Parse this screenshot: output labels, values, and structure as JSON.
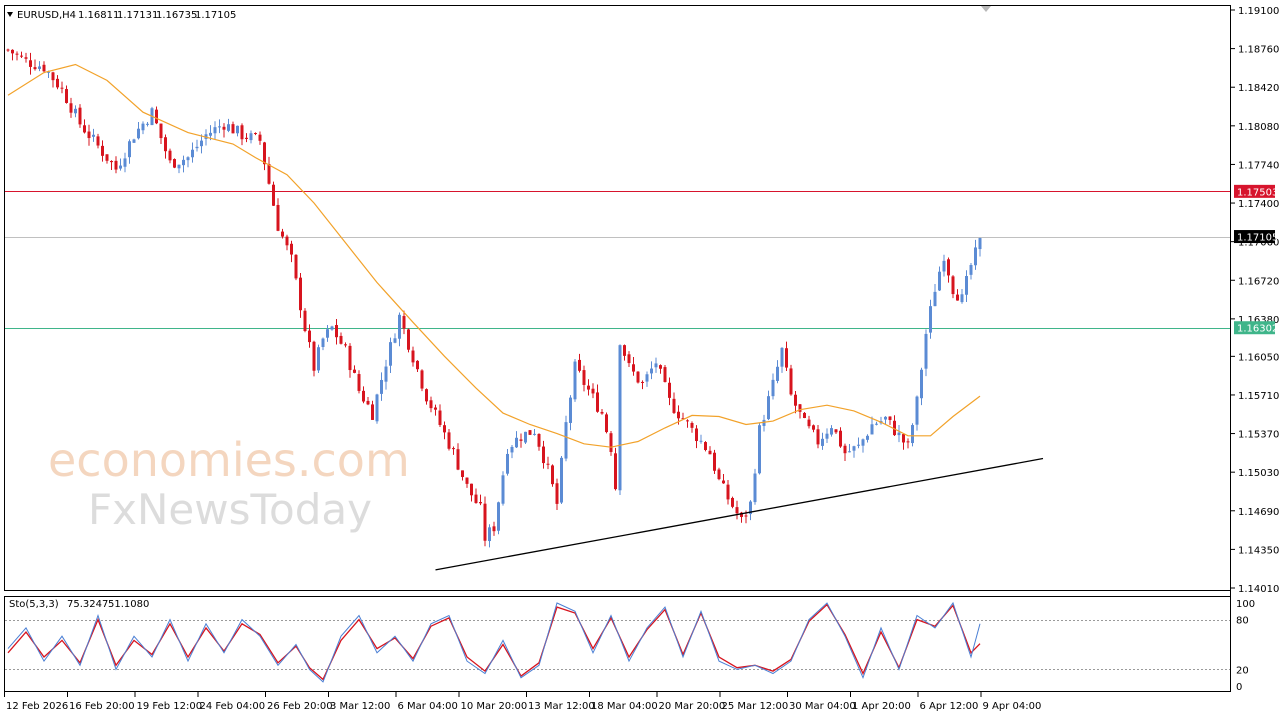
{
  "header": {
    "symbol": "EURUSD,H4",
    "open": "1.16811",
    "high": "1.17131",
    "low": "1.16735",
    "close": "1.17105"
  },
  "stoch_header": {
    "name": "Sto(5,3,3)",
    "main": "75.3247",
    "signal": "51.1080"
  },
  "watermark": {
    "line1": "economies.com",
    "line2": "FxNewsToday"
  },
  "colors": {
    "bull": "#5b8bd4",
    "bear": "#d7141e",
    "ma": "#f2a22a",
    "resistance": "#d7142d",
    "support": "#3fb58a",
    "current": "#000000",
    "trend": "#000000",
    "stoch_main": "#4a7fd4",
    "stoch_signal": "#d7141e"
  },
  "price_axis": {
    "ticks": [
      "1.19100",
      "1.18760",
      "1.18420",
      "1.18080",
      "1.17740",
      "1.17400",
      "1.17060",
      "1.16720",
      "1.16380",
      "1.16050",
      "1.15710",
      "1.15370",
      "1.15030",
      "1.14690",
      "1.14350",
      "1.14010"
    ],
    "resistance_tag": "1.17503",
    "current_tag": "1.17105",
    "support_tag": "1.16302"
  },
  "stoch_axis": {
    "ticks": [
      "100",
      "80",
      "20",
      "0"
    ]
  },
  "time_axis": {
    "ticks": [
      "12 Feb 2026",
      "16 Feb 20:00",
      "19 Feb 12:00",
      "24 Feb 04:00",
      "26 Feb 20:00",
      "3 Mar 12:00",
      "6 Mar 04:00",
      "10 Mar 20:00",
      "13 Mar 12:00",
      "18 Mar 04:00",
      "20 Mar 20:00",
      "25 Mar 12:00",
      "30 Mar 04:00",
      "1 Apr 20:00",
      "6 Apr 12:00",
      "9 Apr 04:00"
    ]
  },
  "chart_data": {
    "type": "candlestick",
    "symbol": "EURUSD",
    "timeframe": "H4",
    "ylim": [
      1.1401,
      1.191
    ],
    "horizontal_levels": [
      {
        "value": 1.17503,
        "role": "resistance"
      },
      {
        "value": 1.17105,
        "role": "current"
      },
      {
        "value": 1.16302,
        "role": "support"
      }
    ],
    "trendline": {
      "from": [
        95,
        1.1417
      ],
      "to": [
        230,
        1.1515
      ]
    },
    "close_anchors": [
      [
        0,
        1.1875
      ],
      [
        4,
        1.1865
      ],
      [
        8,
        1.186
      ],
      [
        12,
        1.184
      ],
      [
        16,
        1.181
      ],
      [
        20,
        1.179
      ],
      [
        24,
        1.177
      ],
      [
        28,
        1.18
      ],
      [
        32,
        1.182
      ],
      [
        36,
        1.1775
      ],
      [
        40,
        1.178
      ],
      [
        44,
        1.18
      ],
      [
        48,
        1.181
      ],
      [
        52,
        1.18
      ],
      [
        56,
        1.1795
      ],
      [
        60,
        1.172
      ],
      [
        63,
        1.169
      ],
      [
        66,
        1.163
      ],
      [
        68,
        1.1595
      ],
      [
        70,
        1.162
      ],
      [
        72,
        1.163
      ],
      [
        75,
        1.161
      ],
      [
        78,
        1.1575
      ],
      [
        81,
        1.1555
      ],
      [
        84,
        1.16
      ],
      [
        87,
        1.164
      ],
      [
        90,
        1.1605
      ],
      [
        93,
        1.157
      ],
      [
        96,
        1.1545
      ],
      [
        99,
        1.152
      ],
      [
        102,
        1.149
      ],
      [
        105,
        1.147
      ],
      [
        106,
        1.1445
      ],
      [
        108,
        1.1455
      ],
      [
        111,
        1.1525
      ],
      [
        114,
        1.1535
      ],
      [
        117,
        1.154
      ],
      [
        120,
        1.1505
      ],
      [
        122,
        1.1475
      ],
      [
        124,
        1.1545
      ],
      [
        126,
        1.1595
      ],
      [
        129,
        1.1575
      ],
      [
        132,
        1.1555
      ],
      [
        134,
        1.1525
      ],
      [
        135,
        1.149
      ],
      [
        136,
        1.162
      ],
      [
        138,
        1.1595
      ],
      [
        141,
        1.158
      ],
      [
        144,
        1.16
      ],
      [
        147,
        1.1565
      ],
      [
        150,
        1.155
      ],
      [
        153,
        1.1535
      ],
      [
        156,
        1.152
      ],
      [
        158,
        1.1495
      ],
      [
        160,
        1.148
      ],
      [
        163,
        1.146
      ],
      [
        165,
        1.1475
      ],
      [
        167,
        1.154
      ],
      [
        170,
        1.158
      ],
      [
        172,
        1.161
      ],
      [
        174,
        1.157
      ],
      [
        177,
        1.1545
      ],
      [
        180,
        1.153
      ],
      [
        183,
        1.1545
      ],
      [
        186,
        1.152
      ],
      [
        189,
        1.1525
      ],
      [
        192,
        1.1545
      ],
      [
        195,
        1.155
      ],
      [
        198,
        1.1535
      ],
      [
        200,
        1.1525
      ],
      [
        202,
        1.1565
      ],
      [
        204,
        1.1625
      ],
      [
        206,
        1.1665
      ],
      [
        208,
        1.1695
      ],
      [
        210,
        1.1665
      ],
      [
        212,
        1.1655
      ],
      [
        214,
        1.1685
      ],
      [
        216,
        1.1705
      ]
    ],
    "ma_anchors": [
      [
        0,
        1.1835
      ],
      [
        8,
        1.1855
      ],
      [
        15,
        1.1862
      ],
      [
        22,
        1.1848
      ],
      [
        30,
        1.182
      ],
      [
        40,
        1.1802
      ],
      [
        50,
        1.1792
      ],
      [
        55,
        1.178
      ],
      [
        62,
        1.1765
      ],
      [
        68,
        1.174
      ],
      [
        75,
        1.1705
      ],
      [
        82,
        1.167
      ],
      [
        90,
        1.1635
      ],
      [
        97,
        1.1605
      ],
      [
        104,
        1.1577
      ],
      [
        110,
        1.1555
      ],
      [
        116,
        1.1545
      ],
      [
        122,
        1.1537
      ],
      [
        128,
        1.1528
      ],
      [
        134,
        1.1525
      ],
      [
        140,
        1.153
      ],
      [
        146,
        1.1542
      ],
      [
        152,
        1.1553
      ],
      [
        158,
        1.1552
      ],
      [
        164,
        1.1545
      ],
      [
        170,
        1.1548
      ],
      [
        176,
        1.1558
      ],
      [
        182,
        1.1562
      ],
      [
        188,
        1.1557
      ],
      [
        194,
        1.1547
      ],
      [
        200,
        1.1535
      ],
      [
        205,
        1.1535
      ],
      [
        210,
        1.1552
      ],
      [
        216,
        1.157
      ]
    ],
    "stoch_main": [
      [
        0,
        45
      ],
      [
        4,
        70
      ],
      [
        8,
        30
      ],
      [
        12,
        60
      ],
      [
        16,
        25
      ],
      [
        20,
        85
      ],
      [
        24,
        20
      ],
      [
        28,
        60
      ],
      [
        32,
        35
      ],
      [
        36,
        80
      ],
      [
        40,
        30
      ],
      [
        44,
        75
      ],
      [
        48,
        40
      ],
      [
        52,
        80
      ],
      [
        56,
        60
      ],
      [
        60,
        25
      ],
      [
        64,
        50
      ],
      [
        67,
        20
      ],
      [
        70,
        5
      ],
      [
        74,
        60
      ],
      [
        78,
        85
      ],
      [
        82,
        40
      ],
      [
        86,
        60
      ],
      [
        90,
        30
      ],
      [
        94,
        75
      ],
      [
        98,
        85
      ],
      [
        102,
        30
      ],
      [
        106,
        15
      ],
      [
        110,
        55
      ],
      [
        114,
        10
      ],
      [
        118,
        25
      ],
      [
        122,
        100
      ],
      [
        126,
        90
      ],
      [
        130,
        40
      ],
      [
        134,
        85
      ],
      [
        138,
        30
      ],
      [
        142,
        70
      ],
      [
        146,
        95
      ],
      [
        150,
        35
      ],
      [
        154,
        90
      ],
      [
        158,
        30
      ],
      [
        162,
        20
      ],
      [
        166,
        25
      ],
      [
        170,
        15
      ],
      [
        174,
        30
      ],
      [
        178,
        80
      ],
      [
        182,
        100
      ],
      [
        186,
        60
      ],
      [
        190,
        10
      ],
      [
        194,
        70
      ],
      [
        198,
        20
      ],
      [
        202,
        85
      ],
      [
        206,
        70
      ],
      [
        210,
        100
      ],
      [
        214,
        35
      ],
      [
        216,
        75
      ]
    ],
    "stoch_signal": [
      [
        0,
        40
      ],
      [
        4,
        65
      ],
      [
        8,
        35
      ],
      [
        12,
        55
      ],
      [
        16,
        28
      ],
      [
        20,
        80
      ],
      [
        24,
        25
      ],
      [
        28,
        55
      ],
      [
        32,
        38
      ],
      [
        36,
        75
      ],
      [
        40,
        35
      ],
      [
        44,
        70
      ],
      [
        48,
        42
      ],
      [
        52,
        75
      ],
      [
        56,
        62
      ],
      [
        60,
        28
      ],
      [
        64,
        48
      ],
      [
        67,
        22
      ],
      [
        70,
        8
      ],
      [
        74,
        55
      ],
      [
        78,
        80
      ],
      [
        82,
        45
      ],
      [
        86,
        58
      ],
      [
        90,
        33
      ],
      [
        94,
        72
      ],
      [
        98,
        82
      ],
      [
        102,
        35
      ],
      [
        106,
        18
      ],
      [
        110,
        50
      ],
      [
        114,
        12
      ],
      [
        118,
        28
      ],
      [
        122,
        95
      ],
      [
        126,
        88
      ],
      [
        130,
        45
      ],
      [
        134,
        82
      ],
      [
        138,
        35
      ],
      [
        142,
        68
      ],
      [
        146,
        92
      ],
      [
        150,
        38
      ],
      [
        154,
        88
      ],
      [
        158,
        35
      ],
      [
        162,
        22
      ],
      [
        166,
        25
      ],
      [
        170,
        18
      ],
      [
        174,
        32
      ],
      [
        178,
        78
      ],
      [
        182,
        98
      ],
      [
        186,
        62
      ],
      [
        190,
        15
      ],
      [
        194,
        65
      ],
      [
        198,
        22
      ],
      [
        202,
        80
      ],
      [
        206,
        72
      ],
      [
        210,
        97
      ],
      [
        214,
        40
      ],
      [
        216,
        51
      ]
    ]
  }
}
